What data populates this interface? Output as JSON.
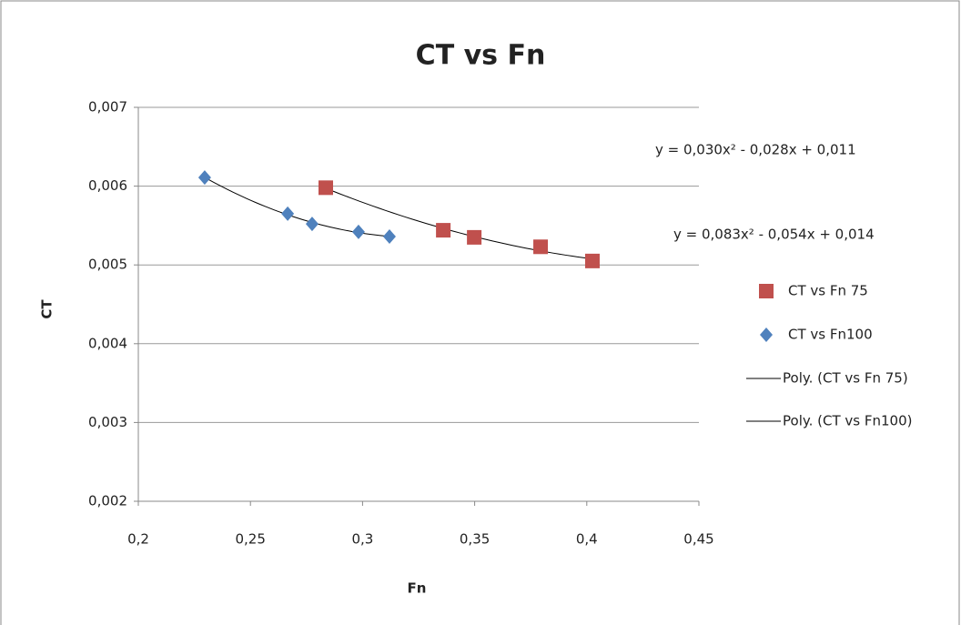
{
  "chart_data": {
    "type": "scatter",
    "title": "CT vs Fn",
    "x_label": "Fn",
    "y_label": "CT",
    "xlim": [
      0.2,
      0.45
    ],
    "ylim": [
      0.002,
      0.007
    ],
    "xticks": [
      {
        "value": 0.2,
        "label": "0,2"
      },
      {
        "value": 0.25,
        "label": "0,25"
      },
      {
        "value": 0.3,
        "label": "0,3"
      },
      {
        "value": 0.35,
        "label": "0,35"
      },
      {
        "value": 0.4,
        "label": "0,4"
      },
      {
        "value": 0.45,
        "label": "0,45"
      }
    ],
    "yticks": [
      {
        "value": 0.002,
        "label": "0,002"
      },
      {
        "value": 0.003,
        "label": "0,003"
      },
      {
        "value": 0.004,
        "label": "0,004"
      },
      {
        "value": 0.005,
        "label": "0,005"
      },
      {
        "value": 0.006,
        "label": "0,006"
      },
      {
        "value": 0.007,
        "label": "0,007"
      }
    ],
    "grid": true,
    "series": [
      {
        "name": "CT vs Fn 75",
        "color": "#c0504d",
        "marker": "square",
        "x": [
          0.2836,
          0.336,
          0.3498,
          0.3794,
          0.4025
        ],
        "values": [
          0.00598,
          0.00544,
          0.00535,
          0.00523,
          0.00505
        ]
      },
      {
        "name": "CT vs Fn100",
        "color": "#4f81bd",
        "marker": "diamond",
        "x": [
          0.2296,
          0.2666,
          0.2775,
          0.2982,
          0.312
        ],
        "values": [
          0.00611,
          0.00565,
          0.00552,
          0.00542,
          0.00536
        ]
      }
    ],
    "trendlines": [
      {
        "name": "Poly. (CT vs Fn 75)",
        "color": "#000000"
      },
      {
        "name": "Poly. (CT vs Fn100)",
        "color": "#000000"
      }
    ],
    "annotations": [
      "y = 0,030x² - 0,028x + 0,011",
      "y = 0,083x² - 0,054x + 0,014"
    ]
  }
}
